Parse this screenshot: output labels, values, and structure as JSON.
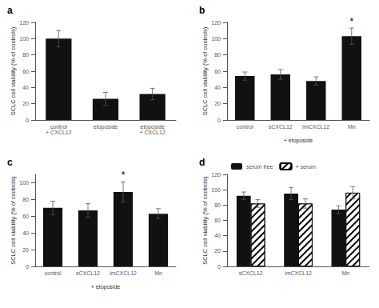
{
  "chart_data": [
    {
      "type": "bar",
      "title": "a",
      "categories": [
        "control\n+ CXCL12",
        "etoposide",
        "etoposide\n+ CXCL12"
      ],
      "values": [
        100,
        26,
        32
      ],
      "errors": [
        10,
        8,
        7
      ],
      "color": "#111111",
      "ylabel": "SCLC cell viability (% of controls)",
      "ylim": [
        0,
        120
      ],
      "yticks": [
        0,
        20,
        40,
        60,
        80,
        100,
        120
      ],
      "grid": false
    },
    {
      "type": "bar",
      "title": "b",
      "categories": [
        "control",
        "sCXCL12",
        "imCXCL12",
        "Mn"
      ],
      "values": [
        54,
        56,
        48,
        103
      ],
      "errors": [
        5,
        6,
        5,
        10
      ],
      "color": "#111111",
      "ylabel": "SCLC cell viability (% of controls)",
      "xlabel": "+ etoposide",
      "ylim": [
        0,
        120
      ],
      "yticks": [
        0,
        20,
        40,
        60,
        80,
        100,
        120
      ],
      "grid": false,
      "annotations": [
        {
          "text": "*",
          "category": "Mn"
        }
      ]
    },
    {
      "type": "bar",
      "title": "c",
      "categories": [
        "control",
        "sCXCL12",
        "imCXCL12",
        "Mn"
      ],
      "values": [
        70,
        67,
        89,
        63
      ],
      "errors": [
        8,
        8,
        12,
        6
      ],
      "color": "#111111",
      "ylabel": "SCLC cell viability (% of controls)",
      "xlabel": "+ etoposide",
      "ylim": [
        0,
        110
      ],
      "yticks": [
        0,
        20,
        40,
        60,
        80,
        100
      ],
      "grid": false,
      "annotations": [
        {
          "text": "*",
          "category": "imCXCL12"
        }
      ]
    },
    {
      "type": "bar",
      "title": "d",
      "categories": [
        "sCXCL12",
        "imCXCL12",
        "Mn"
      ],
      "series": [
        {
          "name": "serum free",
          "color": "#111111",
          "values": [
            92,
            95,
            74
          ],
          "errors": [
            5,
            8,
            5
          ]
        },
        {
          "name": "+ serum",
          "color": "#ffffff",
          "values": [
            82,
            82,
            96
          ],
          "errors": [
            5,
            6,
            8
          ]
        }
      ],
      "ylabel": "SCLC cell viability (% of controls)",
      "ylim": [
        0,
        120
      ],
      "yticks": [
        0,
        20,
        40,
        60,
        80,
        100,
        120
      ],
      "grid": false,
      "legend": "upper left"
    }
  ]
}
